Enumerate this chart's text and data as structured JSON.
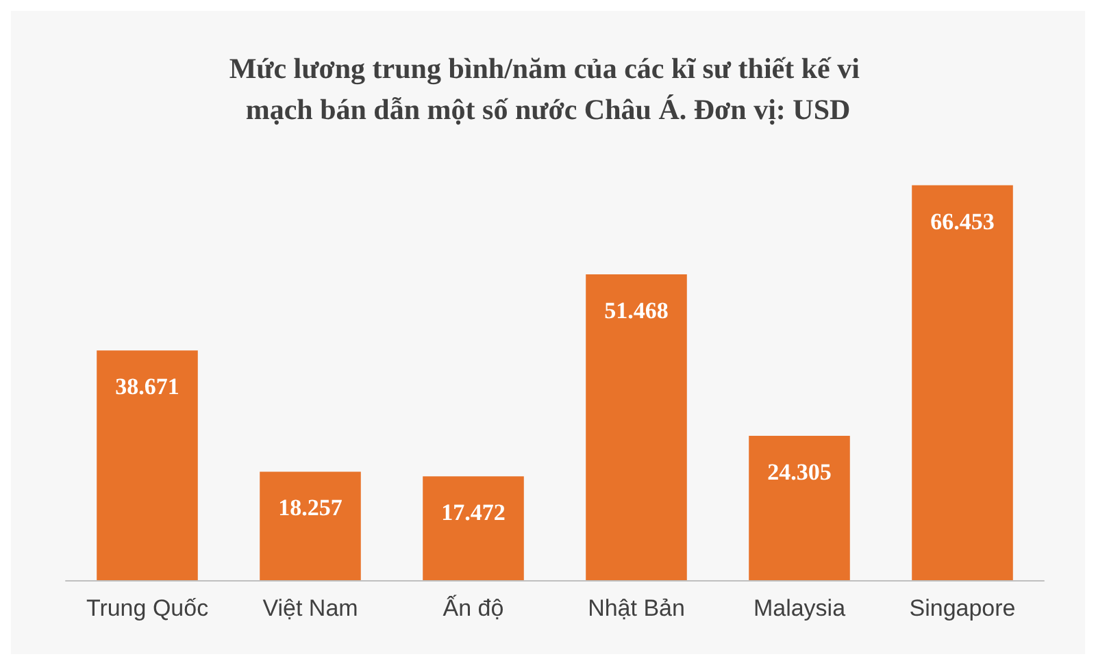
{
  "chart_data": {
    "type": "bar",
    "title": "Mức lương trung bình/năm của các kĩ sư thiết kế vi mạch bán dẫn một số nước Châu Á. Đơn vị: USD",
    "categories": [
      "Trung Quốc",
      "Việt Nam",
      "Ấn độ",
      "Nhật Bản",
      "Malaysia",
      "Singapore"
    ],
    "values": [
      38671,
      18257,
      17472,
      51468,
      24305,
      66453
    ],
    "value_labels": [
      "38.671",
      "18.257",
      "17.472",
      "51.468",
      "24.305",
      "66.453"
    ],
    "color": "#e8732a"
  }
}
